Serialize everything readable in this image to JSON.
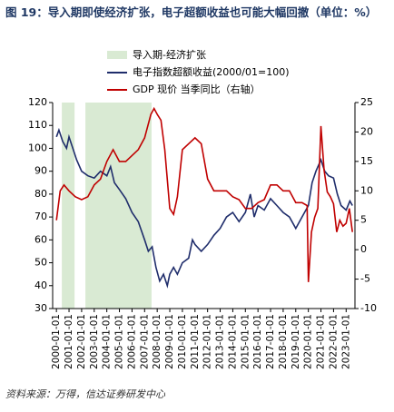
{
  "chart_data": {
    "type": "line",
    "title": "图 19：导入期即使经济扩张，电子超额收益也可能大幅回撤（单位：%）",
    "source": "资料来源：万得，信达证券研发中心",
    "shading": {
      "name": "导入期-经济扩张",
      "color": "#d9ead3",
      "ranges": [
        [
          2000.43,
          2001.44
        ],
        [
          2002.3,
          2007.55
        ]
      ]
    },
    "series": [
      {
        "name": "电子指数超额收益(2000/01=100)",
        "color": "#1f2d6b",
        "axis": "y",
        "x": [
          2000.0,
          2000.2,
          2000.5,
          2000.8,
          2001.0,
          2001.3,
          2001.6,
          2002.0,
          2002.5,
          2003.0,
          2003.5,
          2004.0,
          2004.3,
          2004.6,
          2005.0,
          2005.5,
          2006.0,
          2006.5,
          2007.0,
          2007.3,
          2007.6,
          2007.9,
          2008.2,
          2008.5,
          2008.8,
          2009.0,
          2009.3,
          2009.6,
          2010.0,
          2010.5,
          2010.8,
          2011.0,
          2011.5,
          2012.0,
          2012.5,
          2013.0,
          2013.5,
          2014.0,
          2014.5,
          2015.0,
          2015.4,
          2015.7,
          2016.0,
          2016.5,
          2017.0,
          2017.5,
          2018.0,
          2018.5,
          2019.0,
          2019.5,
          2020.0,
          2020.3,
          2020.6,
          2021.0,
          2021.3,
          2021.6,
          2022.0,
          2022.3,
          2022.6,
          2023.0,
          2023.3,
          2023.5
        ],
        "values": [
          105,
          108,
          103,
          100,
          105,
          100,
          95,
          90,
          88,
          87,
          90,
          88,
          92,
          85,
          82,
          78,
          72,
          68,
          60,
          55,
          57,
          48,
          42,
          45,
          40,
          45,
          48,
          45,
          50,
          52,
          60,
          58,
          55,
          58,
          62,
          65,
          70,
          72,
          68,
          72,
          80,
          70,
          75,
          73,
          78,
          75,
          72,
          70,
          65,
          70,
          75,
          85,
          90,
          95,
          90,
          88,
          87,
          80,
          75,
          73,
          77,
          75
        ]
      },
      {
        "name": "GDP 现价 当季同比（右轴）",
        "color": "#c00000",
        "axis": "y2",
        "x": [
          2000.0,
          2000.3,
          2000.6,
          2001.0,
          2001.5,
          2002.0,
          2002.5,
          2003.0,
          2003.5,
          2004.0,
          2004.5,
          2005.0,
          2005.5,
          2006.0,
          2006.5,
          2007.0,
          2007.5,
          2007.75,
          2008.0,
          2008.3,
          2008.6,
          2009.0,
          2009.3,
          2009.6,
          2010.0,
          2010.5,
          2011.0,
          2011.5,
          2012.0,
          2012.5,
          2013.0,
          2013.5,
          2014.0,
          2014.5,
          2015.0,
          2015.5,
          2016.0,
          2016.5,
          2017.0,
          2017.5,
          2018.0,
          2018.5,
          2019.0,
          2019.5,
          2019.9,
          2020.0,
          2020.25,
          2020.5,
          2020.75,
          2021.0,
          2021.25,
          2021.5,
          2021.75,
          2022.0,
          2022.25,
          2022.5,
          2022.75,
          2023.0,
          2023.25,
          2023.5
        ],
        "values": [
          5,
          10,
          11,
          10,
          9,
          8.5,
          9,
          11,
          12,
          15,
          17,
          15,
          15,
          16,
          17,
          19,
          23,
          24,
          23,
          22,
          17,
          7,
          6,
          9,
          17,
          18,
          19,
          18,
          12,
          10,
          10,
          10,
          9,
          8.5,
          7,
          7,
          8,
          8.5,
          11,
          11,
          10,
          10,
          8,
          8,
          7.5,
          -5.5,
          3,
          5.5,
          7,
          21,
          13.5,
          9.8,
          9,
          7.8,
          3,
          5,
          4,
          4.5,
          7,
          3
        ]
      }
    ],
    "xlim": [
      1999.7,
      2023.7
    ],
    "xticks": [
      {
        "value": 2000,
        "label": "2000-01-01"
      },
      {
        "value": 2001,
        "label": "2001-01-01"
      },
      {
        "value": 2002,
        "label": "2002-01-01"
      },
      {
        "value": 2003,
        "label": "2003-01-01"
      },
      {
        "value": 2004,
        "label": "2004-01-01"
      },
      {
        "value": 2005,
        "label": "2005-01-01"
      },
      {
        "value": 2006,
        "label": "2006-01-01"
      },
      {
        "value": 2007,
        "label": "2007-01-01"
      },
      {
        "value": 2008,
        "label": "2008-01-01"
      },
      {
        "value": 2009,
        "label": "2009-01-01"
      },
      {
        "value": 2010,
        "label": "2010-01-01"
      },
      {
        "value": 2011,
        "label": "2011-01-01"
      },
      {
        "value": 2012,
        "label": "2012-01-01"
      },
      {
        "value": 2013,
        "label": "2013-01-01"
      },
      {
        "value": 2014,
        "label": "2014-01-01"
      },
      {
        "value": 2015,
        "label": "2015-01-01"
      },
      {
        "value": 2016,
        "label": "2016-01-01"
      },
      {
        "value": 2017,
        "label": "2017-01-01"
      },
      {
        "value": 2018,
        "label": "2018-01-01"
      },
      {
        "value": 2019,
        "label": "2019-01-01"
      },
      {
        "value": 2020,
        "label": "2020-01-01"
      },
      {
        "value": 2021,
        "label": "2021-01-01"
      },
      {
        "value": 2022,
        "label": "2022-01-01"
      },
      {
        "value": 2023,
        "label": "2023-01-01"
      }
    ],
    "ylim": [
      30,
      120
    ],
    "yticks": [
      30,
      40,
      50,
      60,
      70,
      80,
      90,
      100,
      110,
      120
    ],
    "y2lim": [
      -10,
      25
    ],
    "y2ticks": [
      -10,
      -5,
      0,
      5,
      10,
      15,
      20,
      25
    ]
  }
}
